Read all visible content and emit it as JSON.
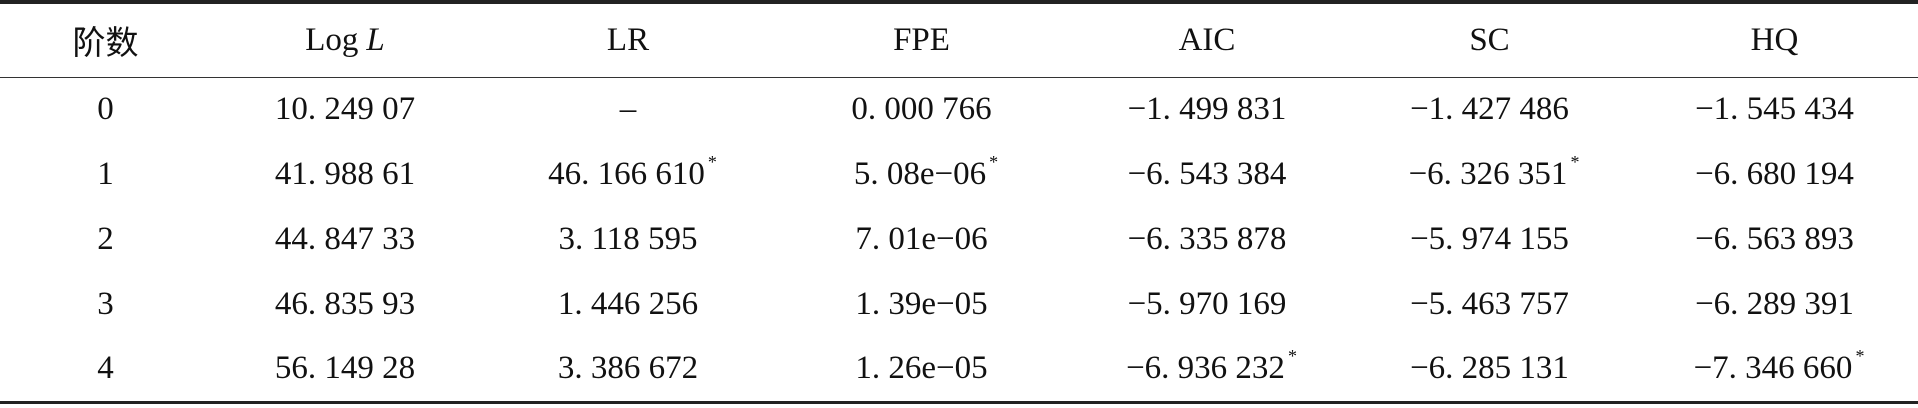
{
  "table": {
    "headers": [
      "阶数",
      {
        "text": "Log",
        "italic": "L"
      },
      "LR",
      "FPE",
      "AIC",
      "SC",
      "HQ"
    ],
    "rows": [
      [
        "0",
        "10. 249 07",
        "–",
        "0. 000 766",
        "−1. 499 831",
        "−1. 427 486",
        "−1. 545 434"
      ],
      [
        "1",
        "41. 988 61",
        {
          "text": "46. 166 610",
          "mark": "*"
        },
        {
          "text": "5. 08e−06",
          "mark": "*"
        },
        "−6. 543 384",
        {
          "text": "−6. 326 351",
          "mark": "*"
        },
        "−6. 680 194"
      ],
      [
        "2",
        "44. 847 33",
        "3. 118 595",
        "7. 01e−06",
        "−6. 335 878",
        "−5. 974 155",
        "−6. 563 893"
      ],
      [
        "3",
        "46. 835 93",
        "1. 446 256",
        "1. 39e−05",
        "−5. 970 169",
        "−5. 463 757",
        "−6. 289 391"
      ],
      [
        "4",
        "56. 149 28",
        "3. 386 672",
        "1. 26e−05",
        {
          "text": "−6. 936 232",
          "mark": "*"
        },
        "−6. 285 131",
        {
          "text": "−7. 346 660",
          "mark": "*"
        }
      ]
    ]
  }
}
